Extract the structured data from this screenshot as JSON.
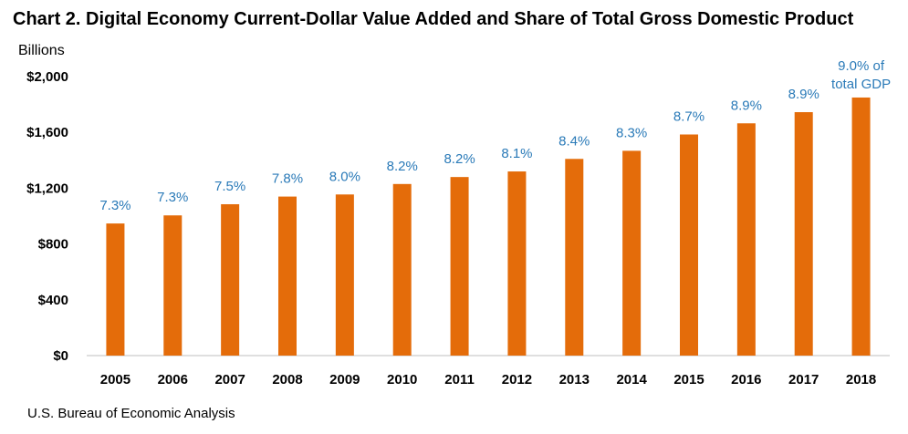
{
  "page": {
    "title": "Chart 2. Digital Economy Current-Dollar Value Added and Share of Total Gross Domestic Product",
    "units_label": "Billions",
    "source": "U.S. Bureau of Economic Analysis"
  },
  "colors": {
    "bar": "#e46c0a",
    "label": "#2a7ab8",
    "axis": "#bfbfbf"
  },
  "chart_data": {
    "type": "bar",
    "title": "Chart 2. Digital Economy Current-Dollar Value Added and Share of Total Gross Domestic Product",
    "xlabel": "",
    "ylabel": "Billions",
    "ylim": [
      0,
      2000
    ],
    "yticks": [
      0,
      400,
      800,
      1200,
      1600,
      2000
    ],
    "ytick_labels": [
      "$0",
      "$400",
      "$800",
      "$1,200",
      "$1,600",
      "$2,000"
    ],
    "grid": false,
    "categories": [
      "2005",
      "2006",
      "2007",
      "2008",
      "2009",
      "2010",
      "2011",
      "2012",
      "2013",
      "2014",
      "2015",
      "2016",
      "2017",
      "2018"
    ],
    "values": [
      947,
      1005,
      1085,
      1140,
      1155,
      1230,
      1280,
      1320,
      1410,
      1468,
      1585,
      1665,
      1745,
      1850
    ],
    "share_labels": [
      "7.3%",
      "7.3%",
      "7.5%",
      "7.8%",
      "8.0%",
      "8.2%",
      "8.2%",
      "8.1%",
      "8.4%",
      "8.3%",
      "8.7%",
      "8.9%",
      "8.9%",
      "9.0% of total GDP"
    ]
  }
}
